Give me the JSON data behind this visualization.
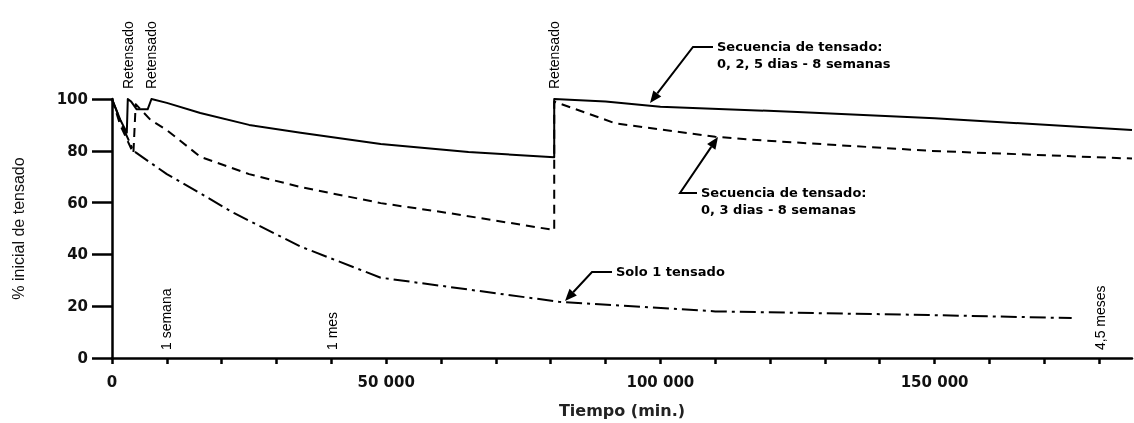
{
  "chart_data": {
    "type": "line",
    "xlabel": "Tiempo (min.)",
    "ylabel": "% inicial de tensado",
    "xlim": [
      0,
      186000
    ],
    "ylim": [
      0,
      100
    ],
    "xticks": [
      0,
      {
        "value": 10000,
        "label": null
      },
      {
        "value": 20000,
        "label": null
      },
      {
        "value": 30000,
        "label": null
      },
      {
        "value": 40000,
        "label": null
      },
      {
        "value": 50000,
        "label": "50 000"
      },
      {
        "value": 60000,
        "label": null
      },
      {
        "value": 70000,
        "label": null
      },
      {
        "value": 80000,
        "label": null
      },
      {
        "value": 90000,
        "label": null
      },
      {
        "value": 100000,
        "label": "100 000"
      },
      {
        "value": 110000,
        "label": null
      },
      {
        "value": 120000,
        "label": null
      },
      {
        "value": 130000,
        "label": null
      },
      {
        "value": 140000,
        "label": null
      },
      {
        "value": 150000,
        "label": "150 000"
      },
      {
        "value": 160000,
        "label": null
      },
      {
        "value": 170000,
        "label": null
      },
      {
        "value": 180000,
        "label": null
      }
    ],
    "yticks": [
      0,
      20,
      40,
      60,
      80,
      100
    ],
    "grid": false,
    "legend": false,
    "marker": "none",
    "series": [
      {
        "name": "Secuencia de tensado:\n0, 2, 5 dias - 8 semanas",
        "color": "#000000",
        "line_style": "solid",
        "x": [
          0,
          1500,
          2700,
          2880,
          3500,
          4500,
          6500,
          7200,
          10000,
          16100,
          25000,
          34400,
          49000,
          65000,
          80640,
          80640,
          90000,
          100000,
          125000,
          150000,
          186000
        ],
        "values": [
          100,
          92,
          87,
          100,
          99,
          96,
          96,
          100,
          98.5,
          94.6,
          90,
          87,
          82.6,
          79.5,
          77.5,
          100,
          99,
          97,
          95,
          92.6,
          88
        ]
      },
      {
        "name": "Secuencia de tensado:\n0, 3 dias - 8 semanas",
        "color": "#000000",
        "line_style": "dashed",
        "x": [
          0,
          1500,
          3900,
          4320,
          7000,
          10000,
          16100,
          25000,
          34400,
          49000,
          61300,
          80640,
          80640,
          91800,
          110000,
          118700,
          149000,
          186000
        ],
        "values": [
          100,
          90,
          79,
          98,
          92,
          88,
          77.7,
          71,
          66,
          59.8,
          56,
          49.4,
          99,
          90.6,
          85.4,
          84,
          80,
          77
        ]
      },
      {
        "name": "Solo 1 tensado",
        "color": "#000000",
        "line_style": "dashdot",
        "x": [
          0,
          2000,
          3900,
          10000,
          16100,
          22200,
          34400,
          49000,
          61300,
          81500,
          110000,
          149000,
          175000
        ],
        "values": [
          100,
          89,
          80,
          71,
          63.6,
          56,
          43,
          31,
          27.5,
          21.7,
          18,
          16.6,
          15.4
        ]
      }
    ],
    "annotations": [
      {
        "text": "Retensado",
        "x": 2880,
        "y": 100
      },
      {
        "text": "Retensado",
        "x": 7200,
        "y": 100
      },
      {
        "text": "Retensado",
        "x": 80640,
        "y": 100
      },
      "1 semana",
      "1 mes",
      "4,5 meses"
    ]
  }
}
